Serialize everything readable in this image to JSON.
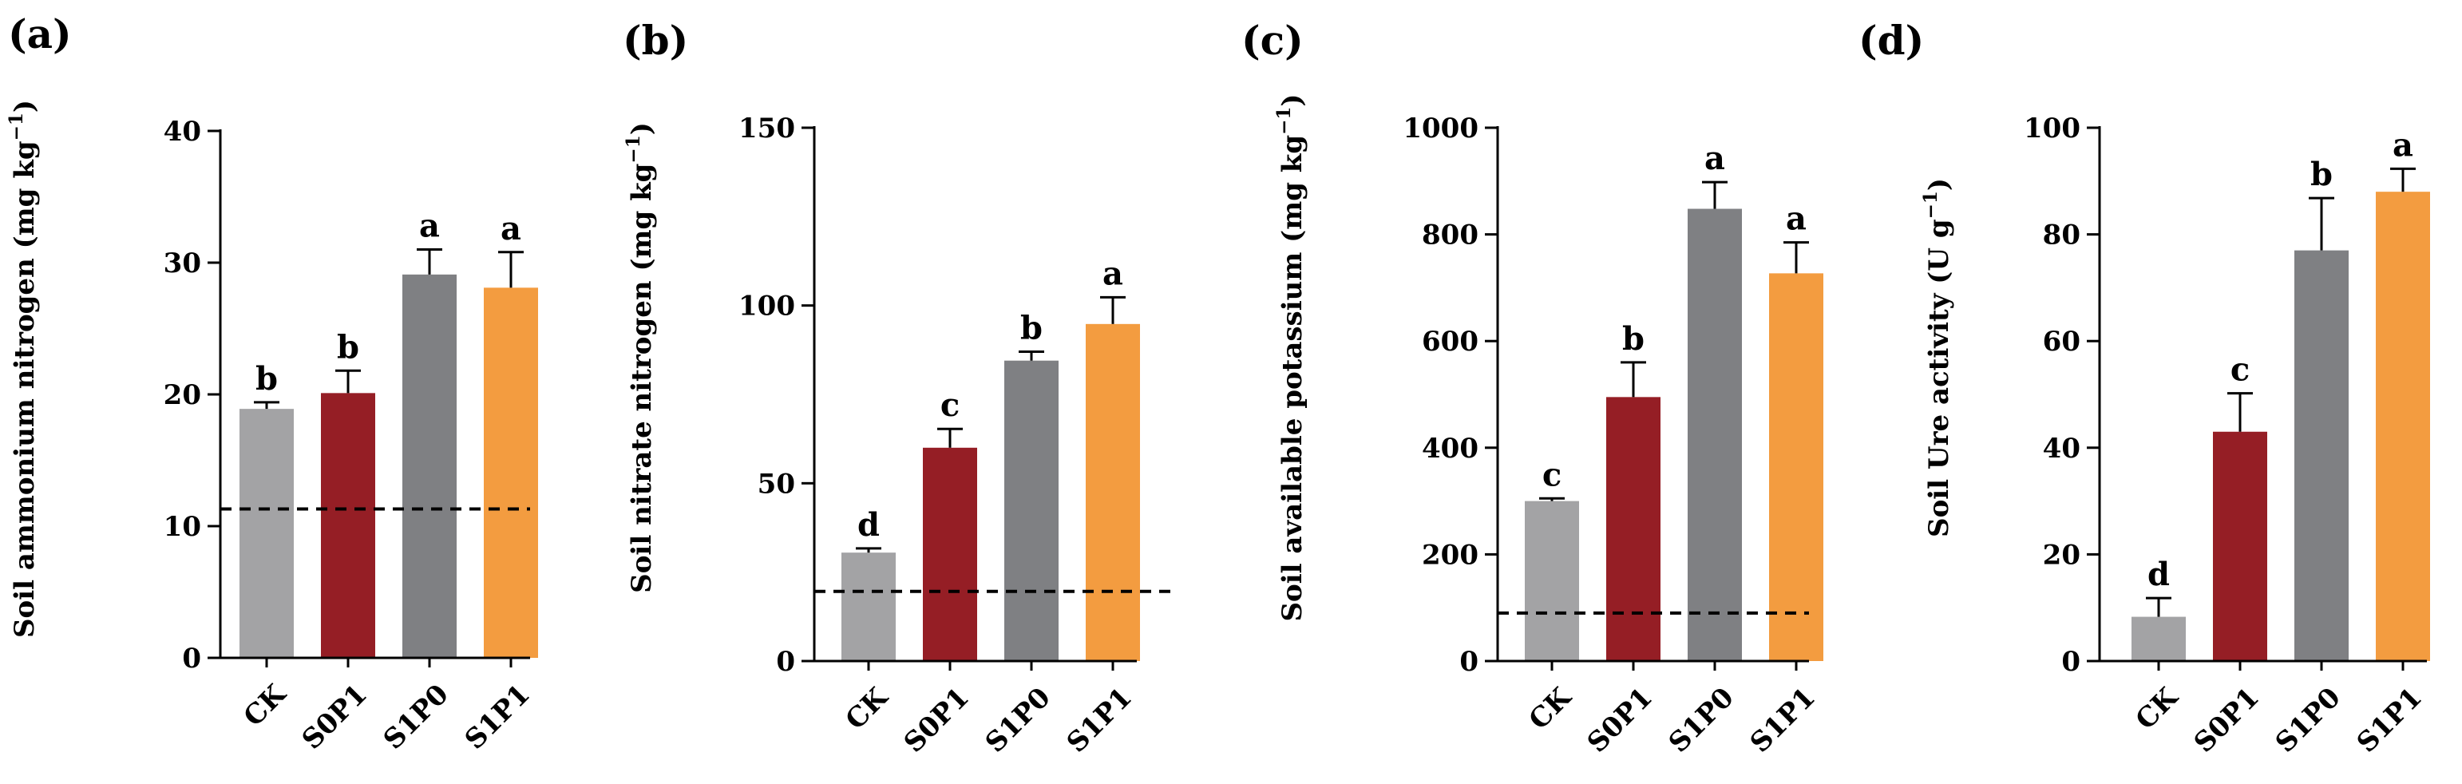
{
  "figure": {
    "colors": {
      "CK": "#a3a3a5",
      "S0P1": "#951e25",
      "S1P0": "#7f8083",
      "S1P1": "#f39c40",
      "axis": "#000000"
    }
  },
  "chart_data": [
    {
      "type": "bar",
      "panel_label": "(a)",
      "ylabel": "Soil ammonium nitrogen (mg kg",
      "ylabel_sup": "−1",
      "ylabel_close": ")",
      "categories": [
        "CK",
        "S0P1",
        "S1P0",
        "S1P1"
      ],
      "values": [
        18.9,
        20.1,
        29.1,
        28.1
      ],
      "errors": [
        0.5,
        1.7,
        1.9,
        2.7
      ],
      "letters": [
        "b",
        "b",
        "a",
        "a"
      ],
      "ylim": [
        0,
        40
      ],
      "yticks": [
        0,
        10,
        20,
        30,
        40
      ],
      "ytick_labels": [
        "0",
        "10",
        "20",
        "30",
        "40"
      ],
      "reference_line": 11.3,
      "grid": false
    },
    {
      "type": "bar",
      "panel_label": "(b)",
      "ylabel": "Soil nitrate nitrogen (mg kg",
      "ylabel_sup": "−1",
      "ylabel_close": ")",
      "categories": [
        "CK",
        "S0P1",
        "S1P0",
        "S1P1"
      ],
      "values": [
        30.5,
        60,
        84.5,
        94.8
      ],
      "errors": [
        1.2,
        5.3,
        2.5,
        7.5
      ],
      "letters": [
        "d",
        "c",
        "b",
        "a"
      ],
      "ylim": [
        0,
        150
      ],
      "yticks": [
        0,
        50,
        100,
        150
      ],
      "ytick_labels": [
        "0",
        "50",
        "100",
        "150"
      ],
      "reference_line": 19.6,
      "grid": false
    },
    {
      "type": "bar",
      "panel_label": "(c)",
      "ylabel": "Soil available potassium (mg kg",
      "ylabel_sup": "−1",
      "ylabel_close": ")",
      "categories": [
        "CK",
        "S0P1",
        "S1P0",
        "S1P1"
      ],
      "values": [
        300,
        495,
        848,
        727
      ],
      "errors": [
        5,
        65,
        50,
        58
      ],
      "letters": [
        "c",
        "b",
        "a",
        "a"
      ],
      "ylim": [
        0,
        1000
      ],
      "yticks": [
        0,
        200,
        400,
        600,
        800,
        1000
      ],
      "ytick_labels": [
        "0",
        "200",
        "400",
        "600",
        "800",
        "1000"
      ],
      "reference_line": 90,
      "grid": false
    },
    {
      "type": "bar",
      "panel_label": "(d)",
      "ylabel": "Soil Ure activity (U g",
      "ylabel_sup": "−1",
      "ylabel_close": ")",
      "categories": [
        "CK",
        "S0P1",
        "S1P0",
        "S1P1"
      ],
      "values": [
        8.3,
        43,
        77,
        88
      ],
      "errors": [
        3.5,
        7.2,
        9.8,
        4.3
      ],
      "letters": [
        "d",
        "c",
        "b",
        "a"
      ],
      "ylim": [
        0,
        100
      ],
      "yticks": [
        0,
        20,
        40,
        60,
        80,
        100
      ],
      "ytick_labels": [
        "0",
        "20",
        "40",
        "60",
        "80",
        "100"
      ],
      "reference_line": null,
      "grid": false
    }
  ]
}
